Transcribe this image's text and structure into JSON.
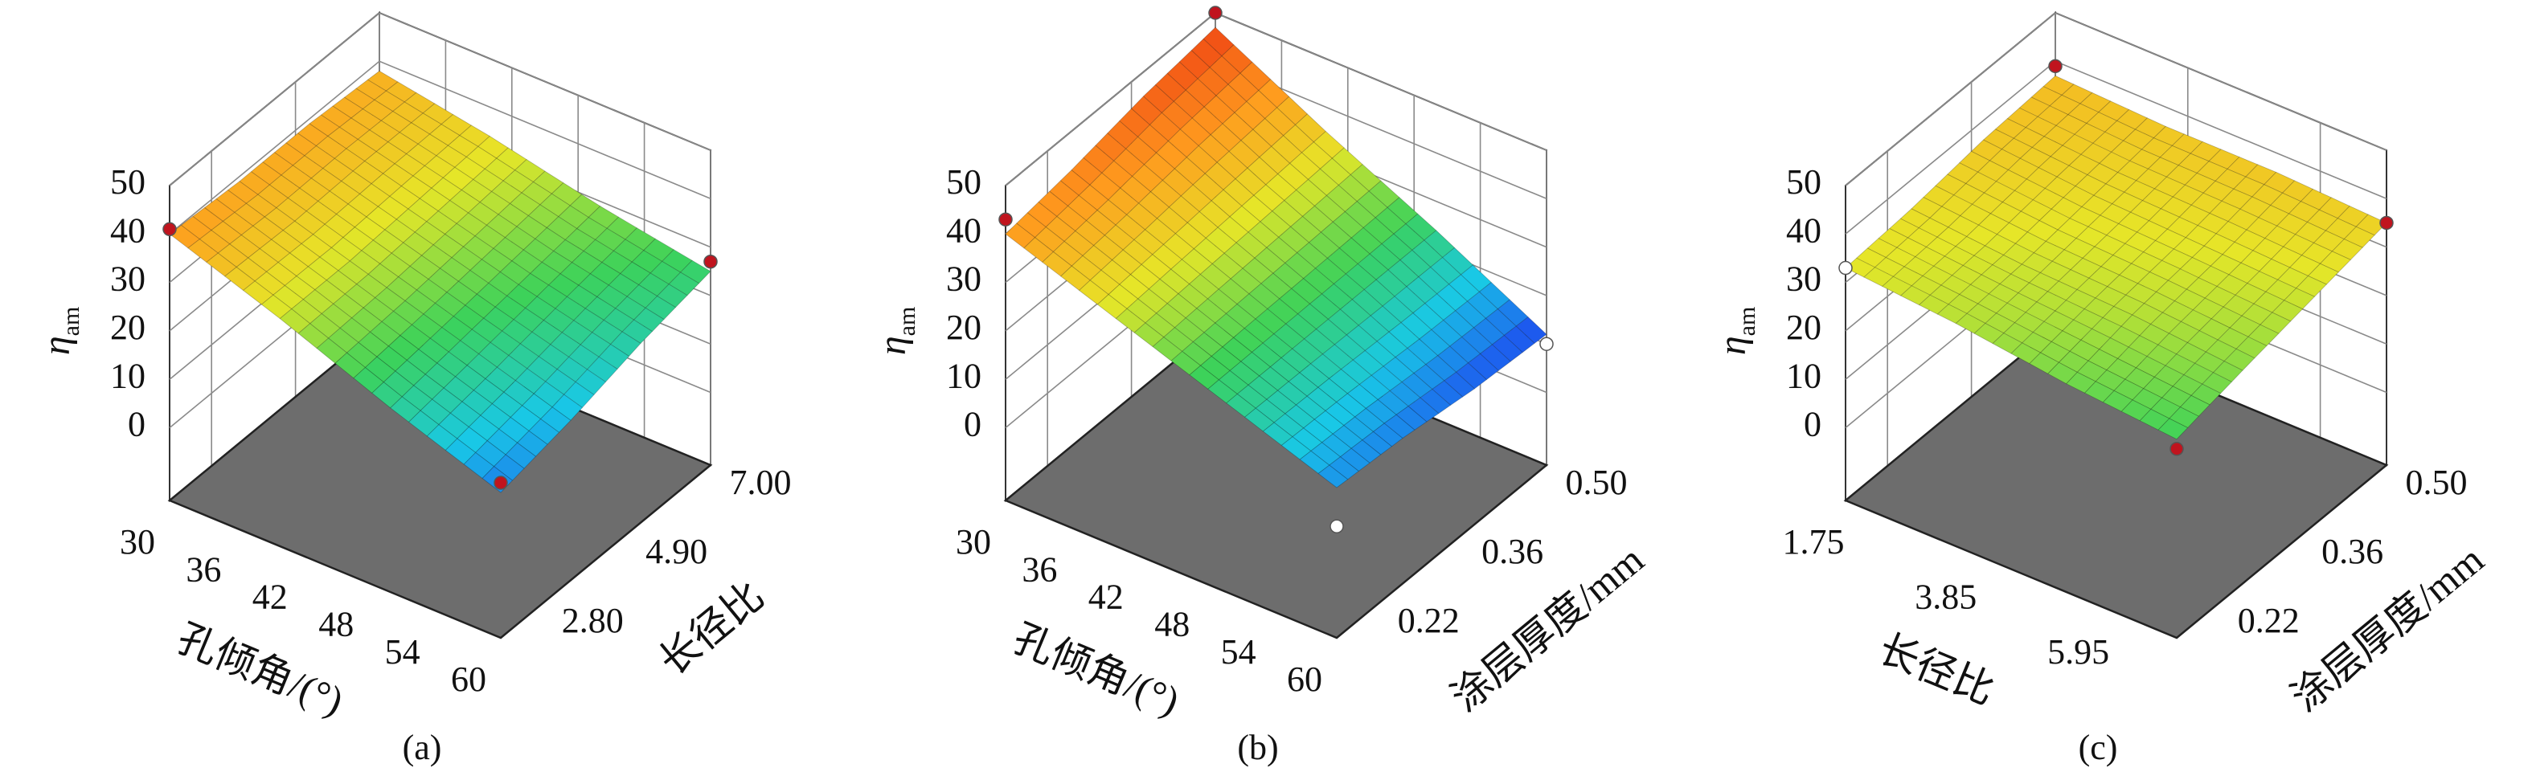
{
  "chart_data": [
    {
      "type": "surface",
      "label": "(a)",
      "xlabel": "孔倾角/(°)",
      "ylabel": "长径比",
      "zlabel": "η",
      "zlabel_sub": "am",
      "x": [
        30,
        40,
        50,
        60
      ],
      "y": [
        1.75,
        3.5,
        5.25,
        7.0
      ],
      "z": [
        [
          40,
          32,
          23,
          15
        ],
        [
          39,
          32,
          25,
          18
        ],
        [
          39,
          33,
          27,
          22
        ],
        [
          38,
          34,
          29,
          25
        ]
      ],
      "xlim": [
        30,
        60
      ],
      "ylim": [
        1.75,
        7.0
      ],
      "zlim": [
        -15,
        50
      ],
      "xticks": [
        30,
        36,
        42,
        48,
        54,
        60
      ],
      "yticks": [
        {
          "value": 2.8,
          "label": "2.80"
        },
        {
          "value": 4.9,
          "label": "4.90"
        },
        {
          "value": 7.0,
          "label": "7.00"
        }
      ],
      "zticks": [
        0,
        10,
        20,
        30,
        40,
        50
      ],
      "points": [
        {
          "x": 30,
          "y": 1.75,
          "z": 41,
          "color": "#c0141e"
        },
        {
          "x": 60,
          "y": 1.75,
          "z": 17,
          "color": "#c0141e"
        },
        {
          "x": 60,
          "y": 7.0,
          "z": 27,
          "color": "#c0141e"
        }
      ],
      "floor_color": "#6d6d6d",
      "colormap": [
        "#1e46f0",
        "#19c8e6",
        "#3cd25a",
        "#e6e628",
        "#ff9b1e",
        "#f04614"
      ]
    },
    {
      "type": "surface",
      "label": "(b)",
      "xlabel": "孔倾角/(°)",
      "ylabel": "涂层厚度/mm",
      "zlabel": "η",
      "zlabel_sub": "am",
      "x": [
        30,
        40,
        50,
        60
      ],
      "y": [
        0.15,
        0.26,
        0.38,
        0.5
      ],
      "z": [
        [
          40,
          32,
          24,
          16
        ],
        [
          42,
          33,
          24,
          15
        ],
        [
          45,
          34,
          24,
          13
        ],
        [
          47,
          35,
          24,
          12
        ]
      ],
      "xlim": [
        30,
        60
      ],
      "ylim": [
        0.15,
        0.5
      ],
      "zlim": [
        -15,
        50
      ],
      "xticks": [
        30,
        36,
        42,
        48,
        54,
        60
      ],
      "yticks": [
        0.22,
        0.36,
        {
          "value": 0.5,
          "label": "0.50"
        }
      ],
      "zticks": [
        0,
        10,
        20,
        30,
        40,
        50
      ],
      "points": [
        {
          "x": 30,
          "y": 0.15,
          "z": 43,
          "color": "#c0141e"
        },
        {
          "x": 30,
          "y": 0.5,
          "z": 50,
          "color": "#c0141e"
        },
        {
          "x": 60,
          "y": 0.15,
          "z": 8,
          "color": "#ffffff"
        },
        {
          "x": 60,
          "y": 0.5,
          "z": 10,
          "color": "#ffffff"
        }
      ],
      "floor_color": "#6d6d6d",
      "colormap": [
        "#1e46f0",
        "#19c8e6",
        "#3cd25a",
        "#e6e628",
        "#ff9b1e",
        "#f04614"
      ]
    },
    {
      "type": "surface",
      "label": "(c)",
      "xlabel": "长径比",
      "ylabel": "涂层厚度/mm",
      "zlabel": "η",
      "zlabel_sub": "am",
      "x": [
        1.75,
        3.5,
        5.25,
        7.0
      ],
      "y": [
        0.15,
        0.26,
        0.38,
        0.5
      ],
      "z": [
        [
          33,
          31,
          28,
          26
        ],
        [
          34,
          32,
          31,
          29
        ],
        [
          36,
          34,
          33,
          32
        ],
        [
          37,
          36,
          36,
          35
        ]
      ],
      "xlim": [
        1.75,
        7.0
      ],
      "ylim": [
        0.15,
        0.5
      ],
      "zlim": [
        -15,
        50
      ],
      "xticks": [
        1.75,
        3.85,
        5.95
      ],
      "yticks": [
        0.22,
        0.36,
        {
          "value": 0.5,
          "label": "0.50"
        }
      ],
      "zticks": [
        0,
        10,
        20,
        30,
        40,
        50
      ],
      "points": [
        {
          "x": 1.75,
          "y": 0.5,
          "z": 39,
          "color": "#c0141e"
        },
        {
          "x": 7.0,
          "y": 0.5,
          "z": 35,
          "color": "#c0141e"
        },
        {
          "x": 7.0,
          "y": 0.15,
          "z": 24,
          "color": "#c0141e"
        },
        {
          "x": 1.75,
          "y": 0.15,
          "z": 33,
          "color": "#ffffff"
        }
      ],
      "floor_color": "#6d6d6d",
      "colormap": [
        "#1e46f0",
        "#19c8e6",
        "#3cd25a",
        "#e6e628",
        "#ff9b1e",
        "#f04614"
      ]
    }
  ]
}
